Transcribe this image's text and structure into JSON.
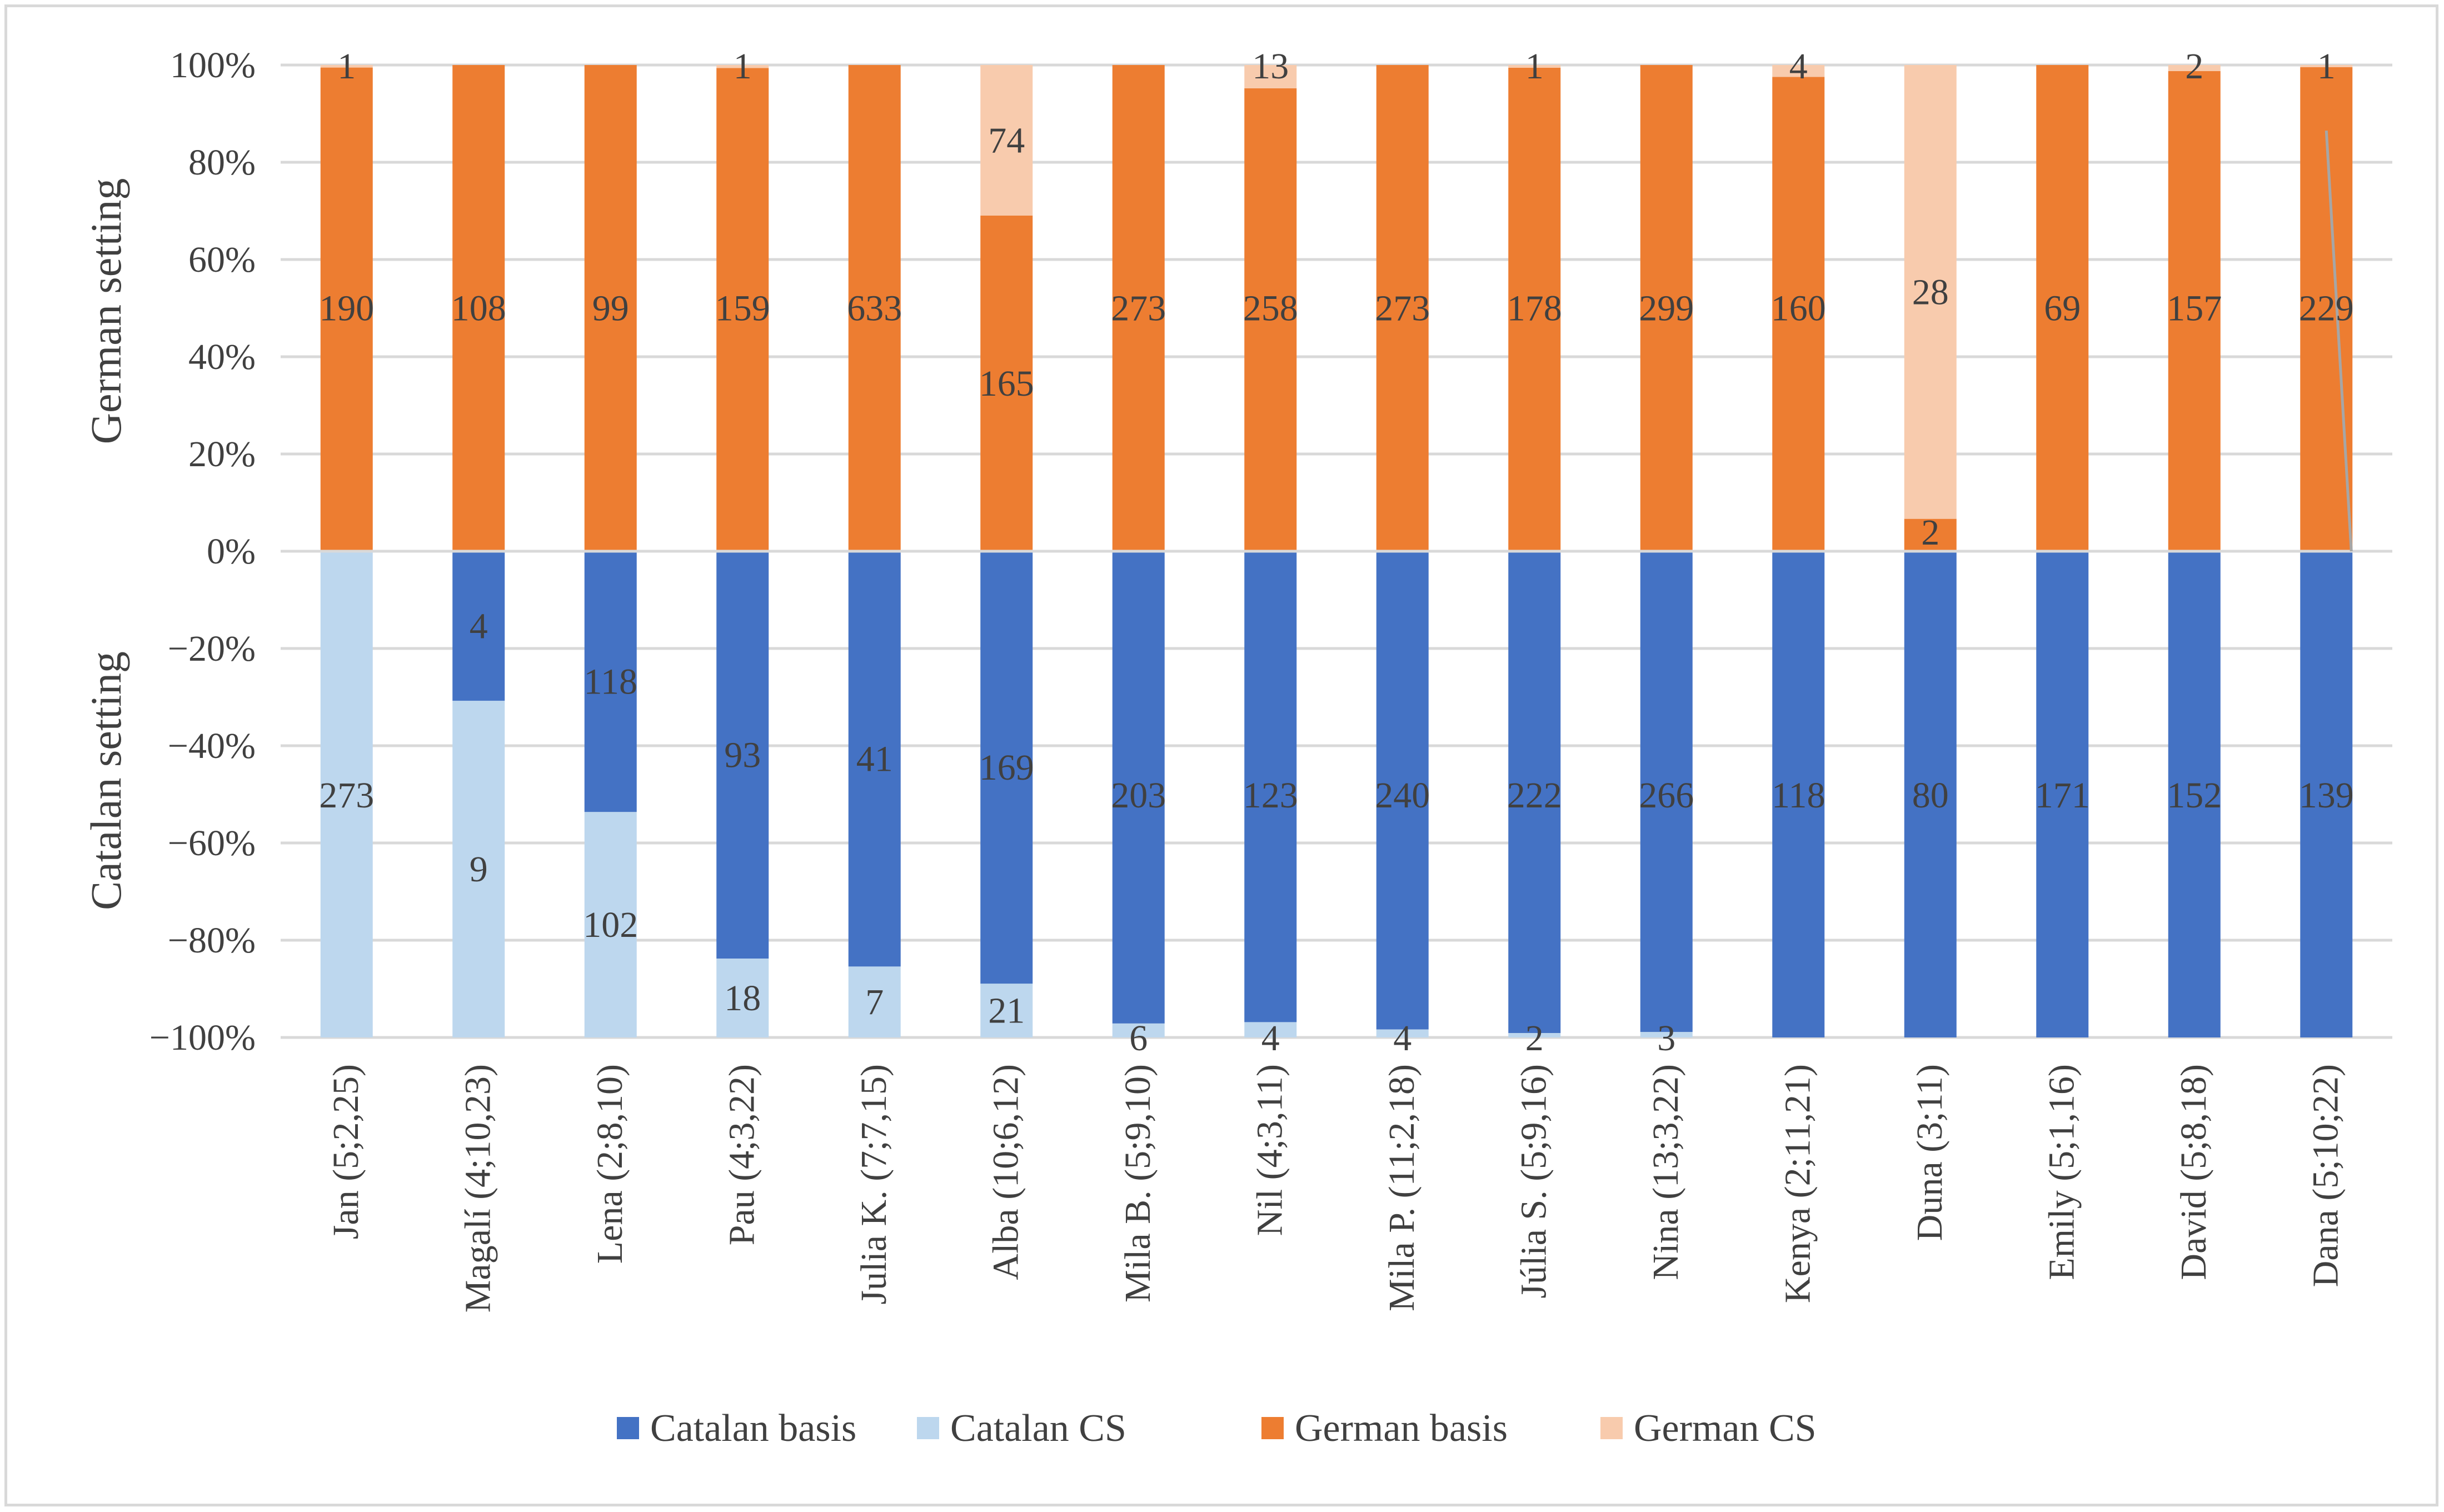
{
  "chart_data": {
    "type": "bar",
    "stacked": "percent-diverging",
    "categories": [
      "Jan (5;2,25)",
      "Magalí (4;10,23)",
      "Lena  (2;8,10)",
      "Pau (4;3,22)",
      "Julia K. (7;7,15)",
      "Alba (10;6,12)",
      "Mila B. (5;9,10)",
      "Nil (4;3,11)",
      "Mila P. (11;2,18)",
      "Júlia S. (5;9,16)",
      "Nina (13;3,22)",
      "Kenya (2;11,21)",
      "Duna (3;11)",
      "Emily (5;1,16)",
      "David (5;8,18)",
      "Dana (5;10;22)"
    ],
    "series": [
      {
        "name": "Catalan basis",
        "setting": "Catalan",
        "color": "#4472c4",
        "values": [
          0,
          4,
          118,
          93,
          41,
          169,
          203,
          123,
          240,
          222,
          266,
          118,
          80,
          171,
          152,
          139
        ]
      },
      {
        "name": "Catalan CS",
        "setting": "Catalan",
        "color": "#bdd7ee",
        "values": [
          273,
          9,
          102,
          18,
          7,
          21,
          6,
          4,
          4,
          2,
          3,
          0,
          0,
          0,
          0,
          0
        ]
      },
      {
        "name": "German basis",
        "setting": "German",
        "color": "#ed7d31",
        "values": [
          190,
          108,
          99,
          159,
          633,
          165,
          273,
          258,
          273,
          178,
          299,
          160,
          2,
          69,
          157,
          229
        ]
      },
      {
        "name": "German CS",
        "setting": "German",
        "color": "#f8cbad",
        "values": [
          1,
          0,
          0,
          1,
          0,
          74,
          0,
          13,
          0,
          1,
          0,
          4,
          28,
          0,
          2,
          1
        ]
      }
    ],
    "data_labels": {
      "Catalan basis": [
        "",
        "4",
        "118",
        "93",
        "41",
        "169",
        "203",
        "123",
        "240",
        "222",
        "266",
        "118",
        "80",
        "171",
        "152",
        "139"
      ],
      "Catalan CS": [
        "273",
        "9",
        "102",
        "18",
        "7",
        "21",
        "6",
        "4",
        "4",
        "2",
        "3",
        "",
        "",
        "",
        "",
        ""
      ],
      "German basis": [
        "190",
        "108",
        "99",
        "159",
        "633",
        "165",
        "273",
        "258",
        "273",
        "178",
        "299",
        "160",
        "2",
        "69",
        "157",
        "229"
      ],
      "German CS": [
        "1",
        "",
        "",
        "1",
        "",
        "74",
        "",
        "13",
        "",
        "1",
        "",
        "4",
        "28",
        "",
        "2",
        "1"
      ]
    },
    "y_ticks": [
      "100%",
      "80%",
      "60%",
      "40%",
      "20%",
      "0%",
      "−20%",
      "−40%",
      "−60%",
      "−80%",
      "−100%"
    ],
    "y_tick_values": [
      100,
      80,
      60,
      40,
      20,
      0,
      -20,
      -40,
      -60,
      -80,
      -100
    ],
    "ylim": [
      -100,
      100
    ],
    "ylabel_top": "German setting",
    "ylabel_bottom": "Catalan setting",
    "title": "",
    "legend": {
      "position": "bottom",
      "entries": [
        "Catalan basis",
        "Catalan CS",
        "German basis",
        "German CS"
      ]
    },
    "grid": true
  }
}
